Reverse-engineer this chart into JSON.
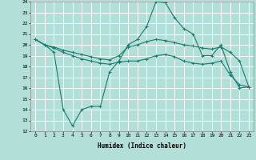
{
  "title": "",
  "xlabel": "Humidex (Indice chaleur)",
  "bg_color": "#b2dfd8",
  "grid_color": "#ffffff",
  "line_color": "#1a7a6e",
  "xlim": [
    -0.5,
    23.5
  ],
  "ylim": [
    12,
    24
  ],
  "yticks": [
    12,
    13,
    14,
    15,
    16,
    17,
    18,
    19,
    20,
    21,
    22,
    23,
    24
  ],
  "xticks": [
    0,
    1,
    2,
    3,
    4,
    5,
    6,
    7,
    8,
    9,
    10,
    11,
    12,
    13,
    14,
    15,
    16,
    17,
    18,
    19,
    20,
    21,
    22,
    23
  ],
  "line1_x": [
    0,
    1,
    2,
    3,
    4,
    5,
    6,
    7,
    8,
    9,
    10,
    11,
    12,
    13,
    14,
    15,
    16,
    17,
    18,
    19,
    20,
    21,
    22,
    23
  ],
  "line1_y": [
    20.5,
    20.0,
    19.3,
    14.0,
    12.5,
    14.0,
    14.3,
    14.3,
    17.5,
    18.5,
    20.0,
    20.5,
    21.7,
    24.0,
    23.9,
    22.5,
    21.5,
    21.0,
    19.0,
    19.0,
    20.0,
    17.5,
    16.0,
    16.1
  ],
  "line2_x": [
    0,
    1,
    2,
    3,
    4,
    5,
    6,
    7,
    8,
    9,
    10,
    11,
    12,
    13,
    14,
    15,
    16,
    17,
    18,
    19,
    20,
    21,
    22,
    23
  ],
  "line2_y": [
    20.5,
    20.0,
    19.8,
    19.5,
    19.3,
    19.1,
    18.9,
    18.7,
    18.6,
    19.0,
    19.8,
    20.0,
    20.3,
    20.5,
    20.4,
    20.2,
    20.0,
    19.9,
    19.7,
    19.6,
    19.8,
    19.3,
    18.5,
    16.1
  ],
  "line3_x": [
    0,
    1,
    2,
    3,
    4,
    5,
    6,
    7,
    8,
    9,
    10,
    11,
    12,
    13,
    14,
    15,
    16,
    17,
    18,
    19,
    20,
    21,
    22,
    23
  ],
  "line3_y": [
    20.5,
    20.0,
    19.7,
    19.3,
    19.0,
    18.7,
    18.5,
    18.3,
    18.2,
    18.4,
    18.5,
    18.5,
    18.7,
    19.0,
    19.1,
    18.9,
    18.5,
    18.3,
    18.2,
    18.3,
    18.5,
    17.2,
    16.3,
    16.1
  ]
}
